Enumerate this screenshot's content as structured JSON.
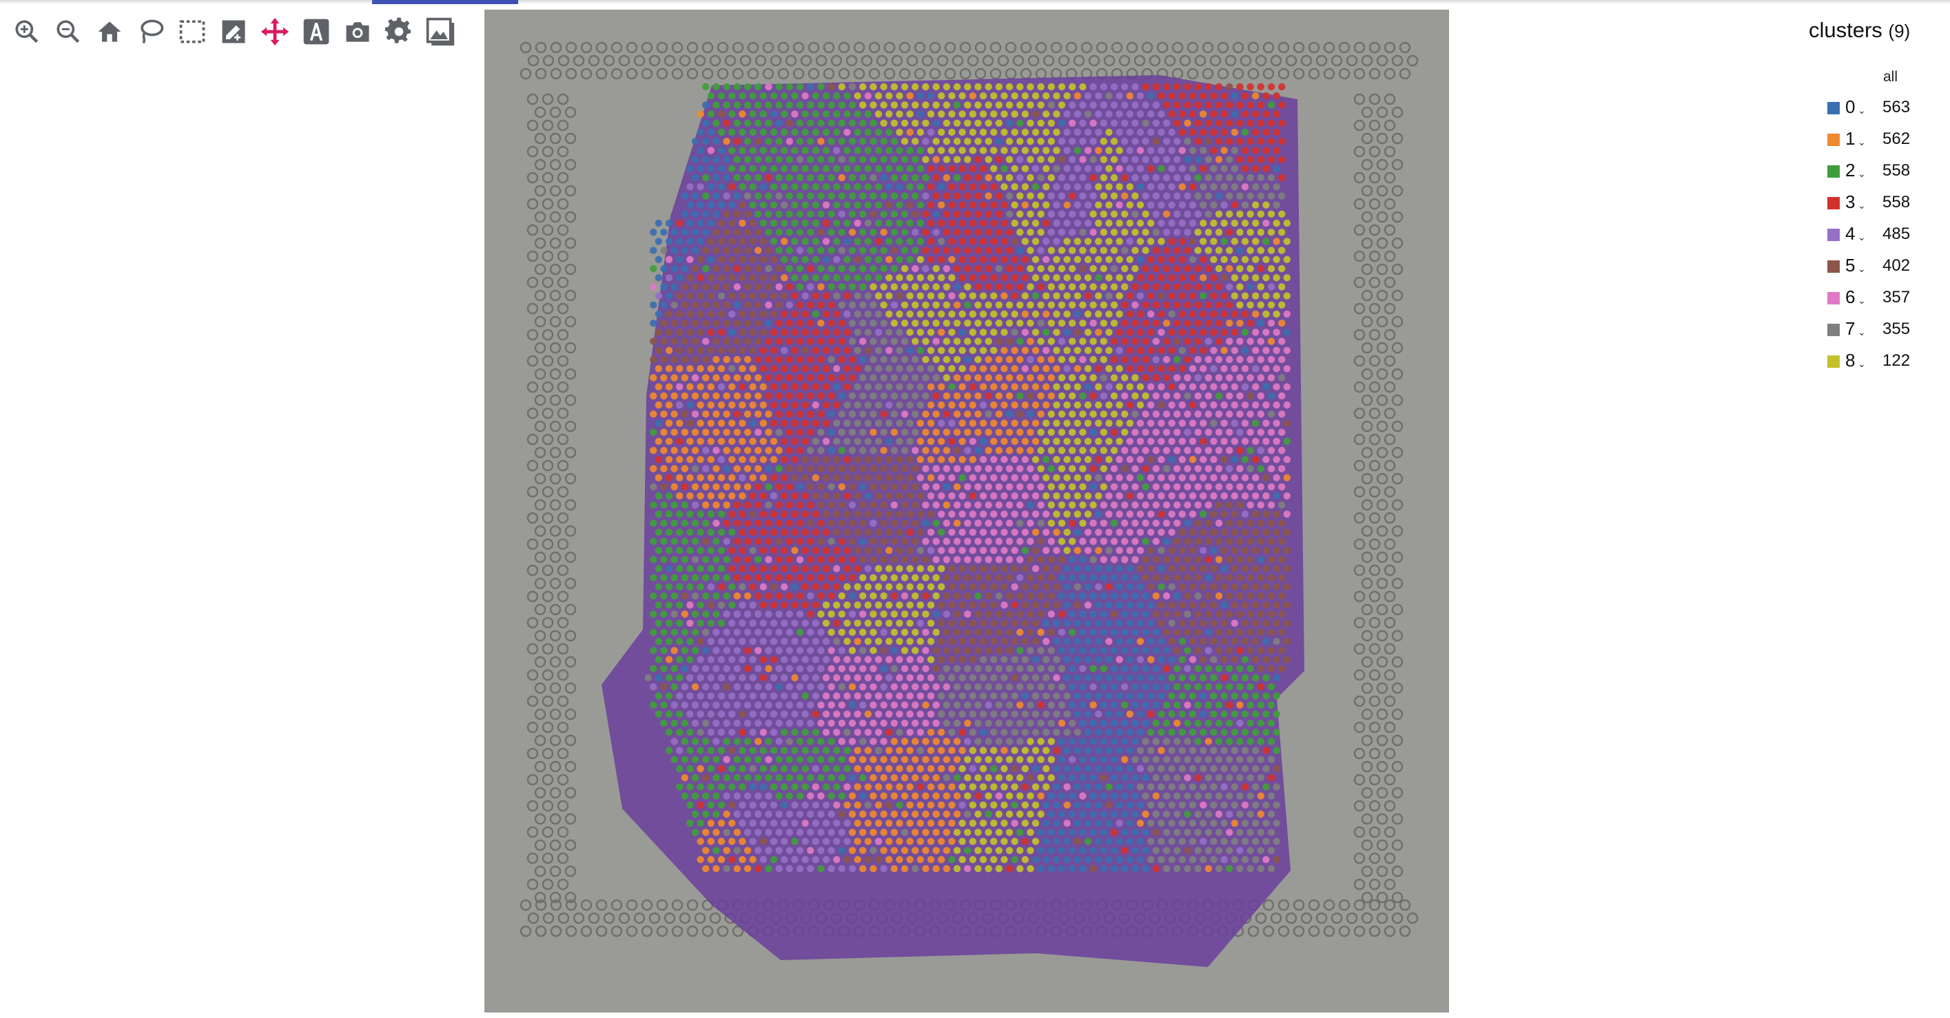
{
  "toolbar": {
    "tools": [
      {
        "name": "zoom-in-icon",
        "active": false
      },
      {
        "name": "zoom-out-icon",
        "active": false
      },
      {
        "name": "home-icon",
        "active": false
      },
      {
        "name": "lasso-icon",
        "active": false
      },
      {
        "name": "box-select-icon",
        "active": false
      },
      {
        "name": "edit-icon",
        "active": false
      },
      {
        "name": "pan-icon",
        "active": true
      },
      {
        "name": "text-annotation-icon",
        "active": false
      },
      {
        "name": "camera-icon",
        "active": false
      },
      {
        "name": "settings-icon",
        "active": false
      },
      {
        "name": "image-icon",
        "active": false
      }
    ],
    "icon_color": "#5f6368",
    "active_color": "#d81b60"
  },
  "legend": {
    "title": "clusters",
    "count_label": "(9)",
    "column_header": "all",
    "clusters": [
      {
        "label": "0",
        "count": "563",
        "color": "#3a6fb0"
      },
      {
        "label": "1",
        "count": "562",
        "color": "#f08a2e"
      },
      {
        "label": "2",
        "count": "558",
        "color": "#3f9e3b"
      },
      {
        "label": "3",
        "count": "558",
        "color": "#d2312c"
      },
      {
        "label": "4",
        "count": "485",
        "color": "#9570c6"
      },
      {
        "label": "5",
        "count": "402",
        "color": "#8c564b"
      },
      {
        "label": "6",
        "count": "357",
        "color": "#e07ac4"
      },
      {
        "label": "7",
        "count": "355",
        "color": "#7f7f7f"
      },
      {
        "label": "8",
        "count": "122",
        "color": "#c4c12a"
      }
    ]
  },
  "viewer": {
    "background": "#9a9b96",
    "tissue_color": "#6a3f9e"
  }
}
